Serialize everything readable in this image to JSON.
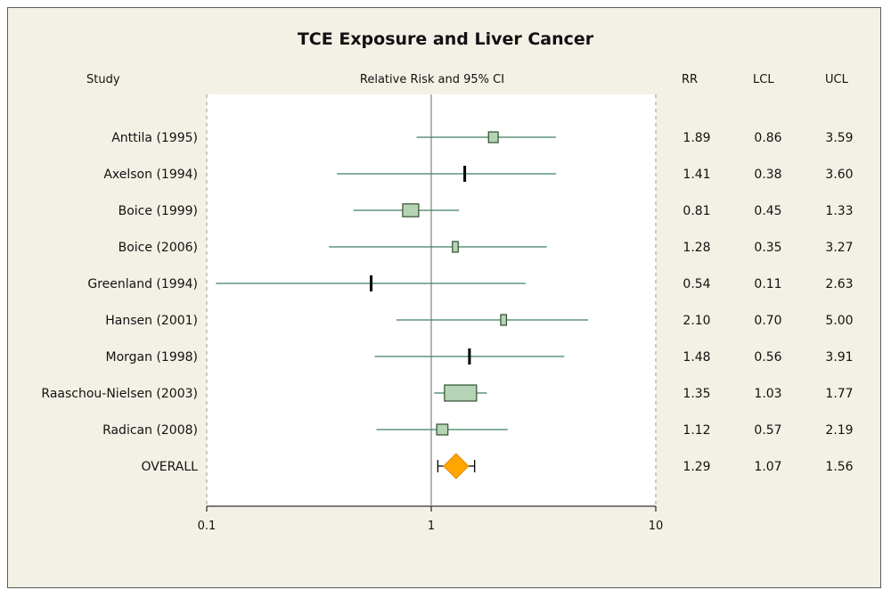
{
  "chart_data": {
    "type": "forest",
    "title": "TCE Exposure and Liver Cancer",
    "headers": {
      "study": "Study",
      "plot": "Relative Risk and 95% CI",
      "rr": "RR",
      "lcl": "LCL",
      "ucl": "UCL"
    },
    "x_scale": "log",
    "xlim": [
      0.1,
      10
    ],
    "x_ticks": [
      0.1,
      1,
      10
    ],
    "x_tick_labels": [
      "0.1",
      "1",
      "10"
    ],
    "reference_line": 1,
    "studies": [
      {
        "name": "Anttila (1995)",
        "rr": 1.89,
        "lcl": 0.86,
        "ucl": 3.59,
        "rr_text": "1.89",
        "lcl_text": "0.86",
        "ucl_text": "3.59",
        "weight": 0.3
      },
      {
        "name": "Axelson (1994)",
        "rr": 1.41,
        "lcl": 0.38,
        "ucl": 3.6,
        "rr_text": "1.41",
        "lcl_text": "0.38",
        "ucl_text": "3.60",
        "weight": 0.12
      },
      {
        "name": "Boice (1999)",
        "rr": 0.81,
        "lcl": 0.45,
        "ucl": 1.33,
        "rr_text": "0.81",
        "lcl_text": "0.45",
        "ucl_text": "1.33",
        "weight": 0.5
      },
      {
        "name": "Boice (2006)",
        "rr": 1.28,
        "lcl": 0.35,
        "ucl": 3.27,
        "rr_text": "1.28",
        "lcl_text": "0.35",
        "ucl_text": "3.27",
        "weight": 0.18
      },
      {
        "name": "Greenland (1994)",
        "rr": 0.54,
        "lcl": 0.11,
        "ucl": 2.63,
        "rr_text": "0.54",
        "lcl_text": "0.11",
        "ucl_text": "2.63",
        "weight": 0.12
      },
      {
        "name": "Hansen (2001)",
        "rr": 2.1,
        "lcl": 0.7,
        "ucl": 5.0,
        "rr_text": "2.10",
        "lcl_text": "0.70",
        "ucl_text": "5.00",
        "weight": 0.18
      },
      {
        "name": "Morgan (1998)",
        "rr": 1.48,
        "lcl": 0.56,
        "ucl": 3.91,
        "rr_text": "1.48",
        "lcl_text": "0.56",
        "ucl_text": "3.91",
        "weight": 0.12
      },
      {
        "name": "Raaschou-Nielsen (2003)",
        "rr": 1.35,
        "lcl": 1.03,
        "ucl": 1.77,
        "rr_text": "1.35",
        "lcl_text": "1.03",
        "ucl_text": "1.77",
        "weight": 1.0
      },
      {
        "name": "Radican (2008)",
        "rr": 1.12,
        "lcl": 0.57,
        "ucl": 2.19,
        "rr_text": "1.12",
        "lcl_text": "0.57",
        "ucl_text": "2.19",
        "weight": 0.35
      }
    ],
    "overall": {
      "name": "OVERALL",
      "rr": 1.29,
      "lcl": 1.07,
      "ucl": 1.56,
      "rr_text": "1.29",
      "lcl_text": "1.07",
      "ucl_text": "1.56"
    },
    "colors": {
      "box_fill": "#b5d3b5",
      "box_stroke": "#2f4f2f",
      "ci_line": "#3f7f5f",
      "diamond": "#ffa500",
      "reference": "#8c8c8c",
      "frame_bg": "#f3f1e6",
      "plot_bg": "#ffffff"
    }
  }
}
